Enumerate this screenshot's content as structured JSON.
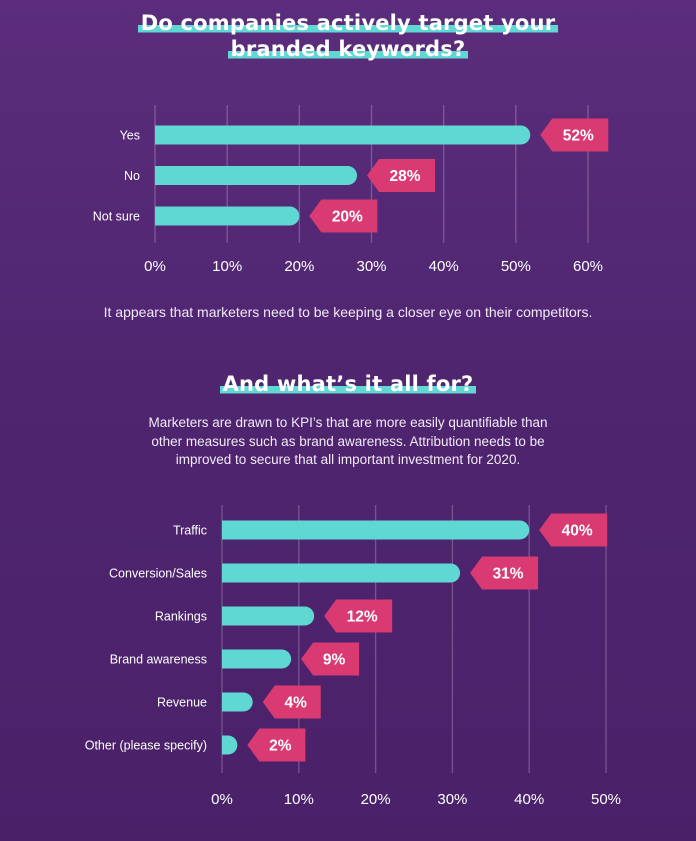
{
  "colors": {
    "background": "#4f2570",
    "bar": "#5fd8d3",
    "tag": "#d93a72",
    "highlight": "#5fd8d3"
  },
  "section1": {
    "title_line1": "Do companies actively target your",
    "title_line2": "branded keywords?",
    "caption": "It appears that marketers need to be keeping a closer eye on their competitors."
  },
  "section2": {
    "title": "And what’s it all for?",
    "paragraph_line1": "Marketers are drawn to KPI’s that are more easily quantifiable than",
    "paragraph_line2": "other measures such as brand awareness. Attribution needs to be",
    "paragraph_line3": "improved to secure that all important investment for 2020."
  },
  "chart_data": [
    {
      "type": "bar",
      "orientation": "horizontal",
      "title": "Do companies actively target your branded keywords?",
      "categories": [
        "Yes",
        "No",
        "Not sure"
      ],
      "values": [
        52,
        28,
        20
      ],
      "value_labels": [
        "52%",
        "28%",
        "20%"
      ],
      "xlim": [
        0,
        60
      ],
      "x_ticks": [
        "0%",
        "10%",
        "20%",
        "30%",
        "40%",
        "50%",
        "60%"
      ],
      "grid": true
    },
    {
      "type": "bar",
      "orientation": "horizontal",
      "title": "And what’s it all for?",
      "categories": [
        "Traffic",
        "Conversion/Sales",
        "Rankings",
        "Brand awareness",
        "Revenue",
        "Other (please specify)"
      ],
      "values": [
        40,
        31,
        12,
        9,
        4,
        2
      ],
      "value_labels": [
        "40%",
        "31%",
        "12%",
        "9%",
        "4%",
        "2%"
      ],
      "xlim": [
        0,
        50
      ],
      "x_ticks": [
        "0%",
        "10%",
        "20%",
        "30%",
        "40%",
        "50%"
      ],
      "grid": true
    }
  ]
}
